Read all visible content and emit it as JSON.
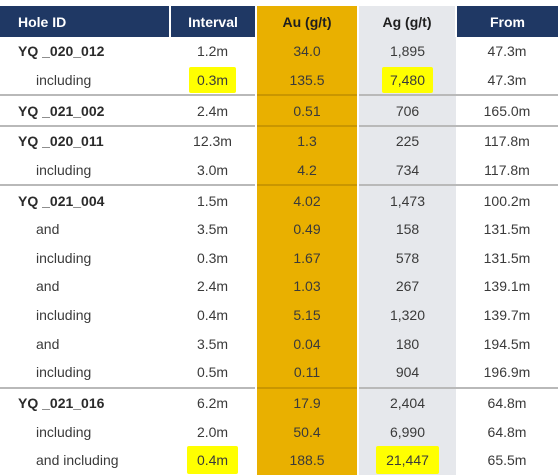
{
  "headers": {
    "hole_id": "Hole ID",
    "interval": "Interval",
    "au": "Au (g/t)",
    "ag": "Ag (g/t)",
    "from": "From"
  },
  "colors": {
    "header_bg": "#1f3864",
    "au_column": "#e9b000",
    "ag_column": "#e6e8ec",
    "highlight": "#ffff00"
  },
  "rows": [
    {
      "hole": "YQ _020_012",
      "interval": "1.2m",
      "au": "34.0",
      "ag": "1,895",
      "from": "47.3m"
    },
    {
      "hole": "including",
      "interval": "0.3m",
      "au": "135.5",
      "ag": "7,480",
      "from": "47.3m"
    },
    {
      "hole": "YQ _021_002",
      "interval": "2.4m",
      "au": "0.51",
      "ag": "706",
      "from": "165.0m"
    },
    {
      "hole": "YQ _020_011",
      "interval": "12.3m",
      "au": "1.3",
      "ag": "225",
      "from": "117.8m"
    },
    {
      "hole": "including",
      "interval": "3.0m",
      "au": "4.2",
      "ag": "734",
      "from": "117.8m"
    },
    {
      "hole": "YQ _021_004",
      "interval": "1.5m",
      "au": "4.02",
      "ag": "1,473",
      "from": "100.2m"
    },
    {
      "hole": "and",
      "interval": "3.5m",
      "au": "0.49",
      "ag": "158",
      "from": "131.5m"
    },
    {
      "hole": "including",
      "interval": "0.3m",
      "au": "1.67",
      "ag": "578",
      "from": "131.5m"
    },
    {
      "hole": "and",
      "interval": "2.4m",
      "au": "1.03",
      "ag": "267",
      "from": "139.1m"
    },
    {
      "hole": "including",
      "interval": "0.4m",
      "au": "5.15",
      "ag": "1,320",
      "from": "139.7m"
    },
    {
      "hole": "and",
      "interval": "3.5m",
      "au": "0.04",
      "ag": "180",
      "from": "194.5m"
    },
    {
      "hole": "including",
      "interval": "0.5m",
      "au": "0.11",
      "ag": "904",
      "from": "196.9m"
    },
    {
      "hole": "YQ _021_016",
      "interval": "6.2m",
      "au": "17.9",
      "ag": "2,404",
      "from": "64.8m"
    },
    {
      "hole": "including",
      "interval": "2.0m",
      "au": "50.4",
      "ag": "6,990",
      "from": "64.8m"
    },
    {
      "hole": "and including",
      "interval": "0.4m",
      "au": "188.5",
      "ag": "21,447",
      "from": "65.5m"
    }
  ]
}
